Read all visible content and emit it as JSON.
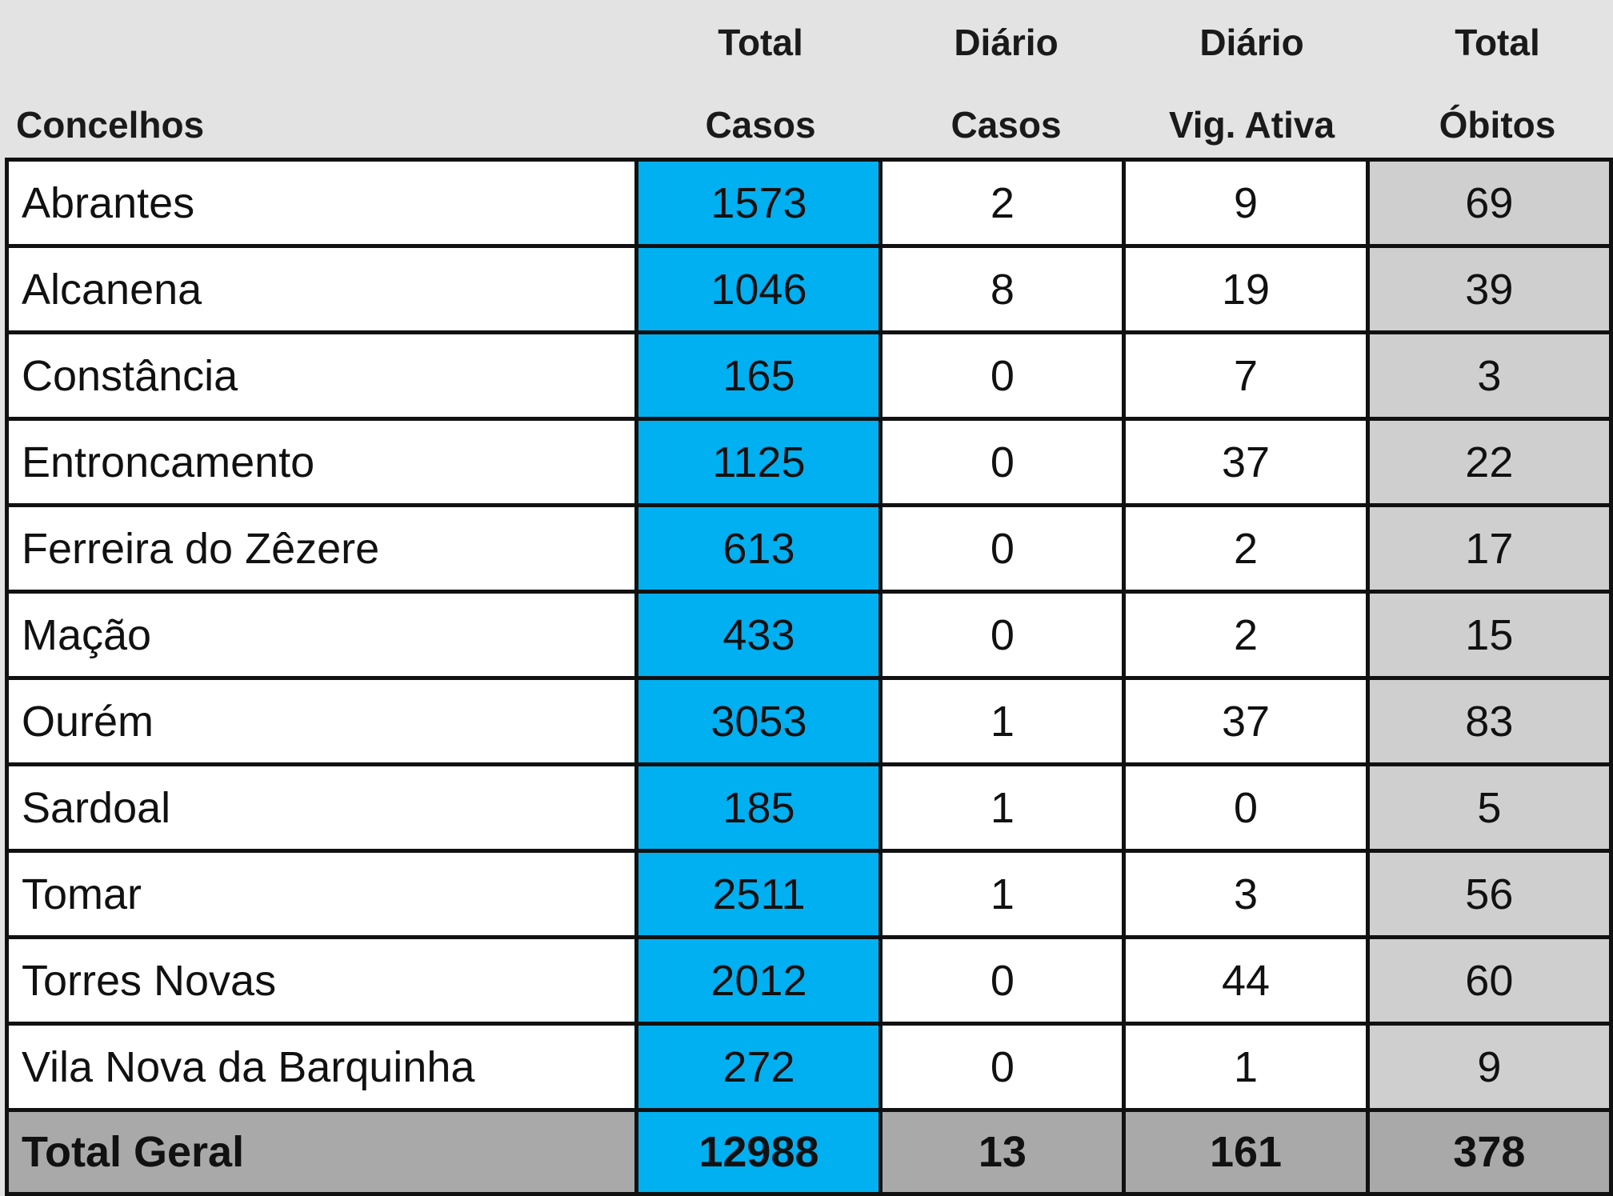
{
  "header": {
    "concelhos": "Concelhos",
    "total_casos": [
      "Total",
      "Casos"
    ],
    "diario_casos": [
      "Diário",
      "Casos"
    ],
    "diario_vig": [
      "Diário",
      "Vig. Ativa"
    ],
    "total_obitos": [
      "Total",
      "Óbitos"
    ]
  },
  "rows": [
    {
      "name": "Abrantes",
      "total_casos": "1573",
      "diario_casos": "2",
      "vig_ativa": "9",
      "obitos": "69"
    },
    {
      "name": "Alcanena",
      "total_casos": "1046",
      "diario_casos": "8",
      "vig_ativa": "19",
      "obitos": "39"
    },
    {
      "name": "Constância",
      "total_casos": "165",
      "diario_casos": "0",
      "vig_ativa": "7",
      "obitos": "3"
    },
    {
      "name": "Entroncamento",
      "total_casos": "1125",
      "diario_casos": "0",
      "vig_ativa": "37",
      "obitos": "22"
    },
    {
      "name": "Ferreira do Zêzere",
      "total_casos": "613",
      "diario_casos": "0",
      "vig_ativa": "2",
      "obitos": "17"
    },
    {
      "name": "Mação",
      "total_casos": "433",
      "diario_casos": "0",
      "vig_ativa": "2",
      "obitos": "15"
    },
    {
      "name": "Ourém",
      "total_casos": "3053",
      "diario_casos": "1",
      "vig_ativa": "37",
      "obitos": "83"
    },
    {
      "name": "Sardoal",
      "total_casos": "185",
      "diario_casos": "1",
      "vig_ativa": "0",
      "obitos": "5"
    },
    {
      "name": "Tomar",
      "total_casos": "2511",
      "diario_casos": "1",
      "vig_ativa": "3",
      "obitos": "56"
    },
    {
      "name": "Torres Novas",
      "total_casos": "2012",
      "diario_casos": "0",
      "vig_ativa": "44",
      "obitos": "60"
    },
    {
      "name": "Vila Nova da Barquinha",
      "total_casos": "272",
      "diario_casos": "0",
      "vig_ativa": "1",
      "obitos": "9"
    }
  ],
  "total": {
    "name": "Total Geral",
    "total_casos": "12988",
    "diario_casos": "13",
    "vig_ativa": "161",
    "obitos": "378"
  },
  "colors": {
    "total_casos_fill": "#00b0f0",
    "obitos_fill": "#cfcfcf",
    "total_row_fill": "#a9a9a9",
    "header_bg": "#e3e3e3"
  }
}
